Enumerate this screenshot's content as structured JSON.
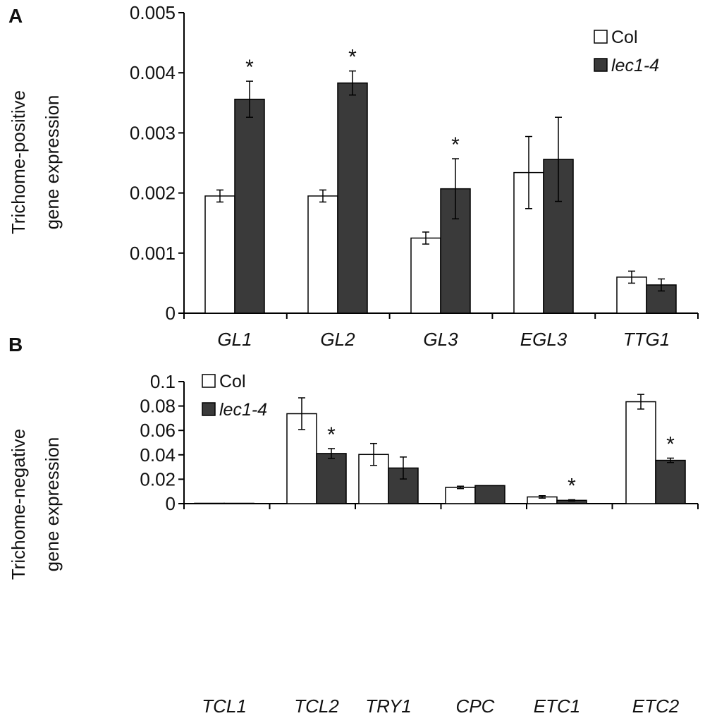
{
  "colors": {
    "col": "#ffffff",
    "lec1_4": "#3a3a3a",
    "axis": "#000000"
  },
  "chart_data": [
    {
      "panel": "A",
      "type": "bar",
      "ylabel_line1": "Trichome-positive",
      "ylabel_line2": "gene expression",
      "ylim": [
        0,
        0.005
      ],
      "yticks": [
        "0",
        "0.001",
        "0.002",
        "0.003",
        "0.004",
        "0.005"
      ],
      "ytick_values": [
        0,
        0.001,
        0.002,
        0.003,
        0.004,
        0.005
      ],
      "categories": [
        "GL1",
        "GL2",
        "GL3",
        "EGL3",
        "TTG1"
      ],
      "legend": [
        "Col",
        "lec1-4"
      ],
      "legend_position": "top-right",
      "series": [
        {
          "name": "Col",
          "values": [
            0.00195,
            0.00195,
            0.00125,
            0.00234,
            0.0006
          ],
          "errors": [
            0.0001,
            0.0001,
            0.0001,
            0.0006,
            0.0001
          ]
        },
        {
          "name": "lec1-4",
          "values": [
            0.00356,
            0.00383,
            0.00207,
            0.00256,
            0.00047
          ],
          "errors": [
            0.0003,
            0.0002,
            0.0005,
            0.0007,
            0.0001
          ]
        }
      ],
      "significance": [
        "*",
        "*",
        "*",
        "",
        ""
      ]
    },
    {
      "panel": "B",
      "type": "bar",
      "ylabel_line1": "Trichome-negative",
      "ylabel_line2": "gene expression",
      "ylim": [
        0,
        0.1
      ],
      "yticks": [
        "0",
        "0.02",
        "0.04",
        "0.06",
        "0.08",
        "0.1"
      ],
      "ytick_values": [
        0,
        0.02,
        0.04,
        0.06,
        0.08,
        0.1
      ],
      "categories": [
        "TCL1",
        "TCL2",
        "TRY1",
        "CPC",
        "ETC1",
        "ETC2"
      ],
      "legend": [
        "Col",
        "lec1-4"
      ],
      "legend_position": "top-left",
      "series": [
        {
          "name": "Col",
          "values": [
            0.0003,
            0.0737,
            0.0403,
            0.0133,
            0.0055,
            0.0835
          ],
          "errors": [
            0,
            0.013,
            0.009,
            0.001,
            0.001,
            0.006
          ]
        },
        {
          "name": "lec1-4",
          "values": [
            0.0002,
            0.0411,
            0.0292,
            0.0148,
            0.0027,
            0.0355
          ],
          "errors": [
            0,
            0.004,
            0.009,
            0,
            0.0005,
            0.0018
          ]
        }
      ],
      "significance": [
        "",
        "*",
        "",
        "",
        "*",
        "*"
      ]
    }
  ]
}
